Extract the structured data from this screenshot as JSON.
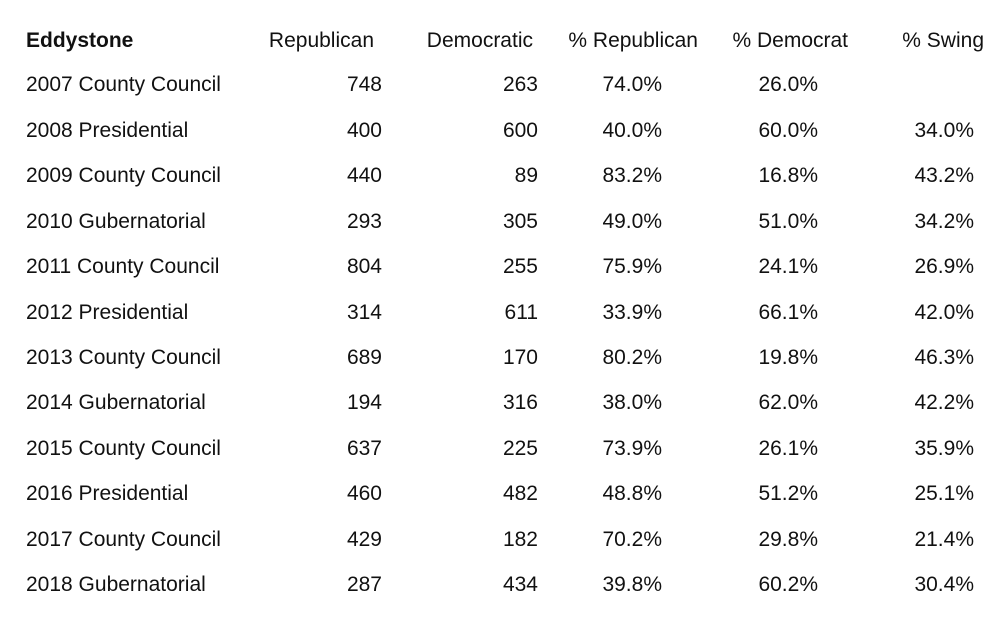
{
  "table": {
    "headers": {
      "name": "Eddystone",
      "republican": "Republican",
      "democratic": "Democratic",
      "pct_republican": "% Republican",
      "pct_democrat": "% Democrat",
      "pct_swing": "% Swing"
    },
    "rows": [
      {
        "name": "2007 County Council",
        "republican": "748",
        "democratic": "263",
        "pct_republican": "74.0%",
        "pct_democrat": "26.0%",
        "pct_swing": ""
      },
      {
        "name": "2008 Presidential",
        "republican": "400",
        "democratic": "600",
        "pct_republican": "40.0%",
        "pct_democrat": "60.0%",
        "pct_swing": "34.0%"
      },
      {
        "name": "2009 County Council",
        "republican": "440",
        "democratic": "89",
        "pct_republican": "83.2%",
        "pct_democrat": "16.8%",
        "pct_swing": "43.2%"
      },
      {
        "name": "2010 Gubernatorial",
        "republican": "293",
        "democratic": "305",
        "pct_republican": "49.0%",
        "pct_democrat": "51.0%",
        "pct_swing": "34.2%"
      },
      {
        "name": "2011 County Council",
        "republican": "804",
        "democratic": "255",
        "pct_republican": "75.9%",
        "pct_democrat": "24.1%",
        "pct_swing": "26.9%"
      },
      {
        "name": "2012 Presidential",
        "republican": "314",
        "democratic": "611",
        "pct_republican": "33.9%",
        "pct_democrat": "66.1%",
        "pct_swing": "42.0%"
      },
      {
        "name": "2013 County Council",
        "republican": "689",
        "democratic": "170",
        "pct_republican": "80.2%",
        "pct_democrat": "19.8%",
        "pct_swing": "46.3%"
      },
      {
        "name": "2014 Gubernatorial",
        "republican": "194",
        "democratic": "316",
        "pct_republican": "38.0%",
        "pct_democrat": "62.0%",
        "pct_swing": "42.2%"
      },
      {
        "name": "2015 County Council",
        "republican": "637",
        "democratic": "225",
        "pct_republican": "73.9%",
        "pct_democrat": "26.1%",
        "pct_swing": "35.9%"
      },
      {
        "name": "2016 Presidential",
        "republican": "460",
        "democratic": "482",
        "pct_republican": "48.8%",
        "pct_democrat": "51.2%",
        "pct_swing": "25.1%"
      },
      {
        "name": "2017 County Council",
        "republican": "429",
        "democratic": "182",
        "pct_republican": "70.2%",
        "pct_democrat": "29.8%",
        "pct_swing": "21.4%"
      },
      {
        "name": "2018 Gubernatorial",
        "republican": "287",
        "democratic": "434",
        "pct_republican": "39.8%",
        "pct_democrat": "60.2%",
        "pct_swing": "30.4%"
      }
    ]
  }
}
